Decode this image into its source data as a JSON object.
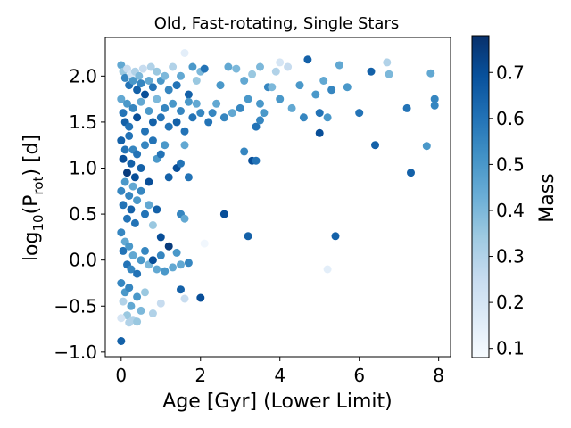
{
  "chart_data": {
    "type": "scatter",
    "title": "Old, Fast-rotating, Single Stars",
    "xlabel": "Age [Gyr] (Lower Limit)",
    "ylabel_parts": {
      "pre": "log",
      "sub1": "10",
      "mid": "(P",
      "sub2": "rot",
      "post": ") [d]"
    },
    "colorbar_label": "Mass",
    "xlim": [
      -0.4,
      8.3
    ],
    "ylim": [
      -1.05,
      2.42
    ],
    "xticks": [
      0,
      2,
      4,
      6,
      8
    ],
    "yticks": [
      -1.0,
      -0.5,
      0.0,
      0.5,
      1.0,
      1.5,
      2.0
    ],
    "clim": [
      0.08,
      0.78
    ],
    "cbar_ticks": [
      0.1,
      0.2,
      0.3,
      0.4,
      0.5,
      0.6,
      0.7
    ],
    "colormap": [
      "#f7fbff",
      "#deebf7",
      "#c6dbef",
      "#9ecae1",
      "#6baed6",
      "#4292c6",
      "#2171b5",
      "#08519c",
      "#08306b"
    ],
    "grid": false,
    "points": [
      [
        0.0,
        2.12,
        0.45
      ],
      [
        0.05,
        2.05,
        0.35
      ],
      [
        0.1,
        1.98,
        0.55
      ],
      [
        0.15,
        2.08,
        0.25
      ],
      [
        0.2,
        1.9,
        0.6
      ],
      [
        0.25,
        2.02,
        0.2
      ],
      [
        0.3,
        1.95,
        0.5
      ],
      [
        0.35,
        2.05,
        0.3
      ],
      [
        0.4,
        1.85,
        0.65
      ],
      [
        0.45,
        2.0,
        0.4
      ],
      [
        0.5,
        1.92,
        0.55
      ],
      [
        0.55,
        2.08,
        0.25
      ],
      [
        0.6,
        1.8,
        0.7
      ],
      [
        0.7,
        1.95,
        0.45
      ],
      [
        0.75,
        2.1,
        0.3
      ],
      [
        0.8,
        1.88,
        0.6
      ],
      [
        0.9,
        2.05,
        0.35
      ],
      [
        1.0,
        1.95,
        0.5
      ],
      [
        1.1,
        2.0,
        0.4
      ],
      [
        1.2,
        1.85,
        0.55
      ],
      [
        1.3,
        2.1,
        0.3
      ],
      [
        1.4,
        1.9,
        0.6
      ],
      [
        1.5,
        2.0,
        0.45
      ],
      [
        1.6,
        2.25,
        0.15
      ],
      [
        1.7,
        1.8,
        0.65
      ],
      [
        1.8,
        2.1,
        0.5
      ],
      [
        1.9,
        1.95,
        0.35
      ],
      [
        2.0,
        2.05,
        0.4
      ],
      [
        2.1,
        2.08,
        0.6
      ],
      [
        2.3,
        1.6,
        0.55
      ],
      [
        2.5,
        1.9,
        0.5
      ],
      [
        2.7,
        2.1,
        0.45
      ],
      [
        2.9,
        2.08,
        0.4
      ],
      [
        3.1,
        1.95,
        0.45
      ],
      [
        3.3,
        2.02,
        0.35
      ],
      [
        3.5,
        2.1,
        0.4
      ],
      [
        3.7,
        1.88,
        0.55
      ],
      [
        3.9,
        2.05,
        0.3
      ],
      [
        4.0,
        2.15,
        0.2
      ],
      [
        4.2,
        2.1,
        0.25
      ],
      [
        4.5,
        1.9,
        0.5
      ],
      [
        4.7,
        2.18,
        0.65
      ],
      [
        4.9,
        1.8,
        0.5
      ],
      [
        5.1,
        1.95,
        0.45
      ],
      [
        5.3,
        1.85,
        0.55
      ],
      [
        5.5,
        2.12,
        0.45
      ],
      [
        5.7,
        1.88,
        0.5
      ],
      [
        6.3,
        2.05,
        0.65
      ],
      [
        6.7,
        2.15,
        0.3
      ],
      [
        6.75,
        2.02,
        0.4
      ],
      [
        7.8,
        2.03,
        0.45
      ],
      [
        7.9,
        1.75,
        0.55
      ],
      [
        0.0,
        1.75,
        0.45
      ],
      [
        0.05,
        1.6,
        0.6
      ],
      [
        0.1,
        1.5,
        0.65
      ],
      [
        0.15,
        1.7,
        0.5
      ],
      [
        0.2,
        1.45,
        0.6
      ],
      [
        0.3,
        1.65,
        0.55
      ],
      [
        0.4,
        1.55,
        0.7
      ],
      [
        0.5,
        1.72,
        0.45
      ],
      [
        0.6,
        1.4,
        0.6
      ],
      [
        0.7,
        1.62,
        0.5
      ],
      [
        0.8,
        1.5,
        0.65
      ],
      [
        0.9,
        1.75,
        0.4
      ],
      [
        1.0,
        1.55,
        0.6
      ],
      [
        1.1,
        1.65,
        0.55
      ],
      [
        1.2,
        1.45,
        0.6
      ],
      [
        1.3,
        1.7,
        0.5
      ],
      [
        1.4,
        1.5,
        0.65
      ],
      [
        1.5,
        1.62,
        0.55
      ],
      [
        1.6,
        1.4,
        0.6
      ],
      [
        1.7,
        1.72,
        0.5
      ],
      [
        1.8,
        1.55,
        0.6
      ],
      [
        1.9,
        1.7,
        0.45
      ],
      [
        2.0,
        1.6,
        0.55
      ],
      [
        2.2,
        1.5,
        0.6
      ],
      [
        2.4,
        1.7,
        0.45
      ],
      [
        2.6,
        1.55,
        0.55
      ],
      [
        2.8,
        1.6,
        0.45
      ],
      [
        3.0,
        1.65,
        0.55
      ],
      [
        3.2,
        1.75,
        0.5
      ],
      [
        3.4,
        1.45,
        0.6
      ],
      [
        3.6,
        1.6,
        0.5
      ],
      [
        3.8,
        1.88,
        0.4
      ],
      [
        4.0,
        1.75,
        0.5
      ],
      [
        4.3,
        1.65,
        0.45
      ],
      [
        4.6,
        1.55,
        0.55
      ],
      [
        5.0,
        1.6,
        0.6
      ],
      [
        5.2,
        1.55,
        0.5
      ],
      [
        6.0,
        1.6,
        0.6
      ],
      [
        7.2,
        1.65,
        0.6
      ],
      [
        7.9,
        1.68,
        0.55
      ],
      [
        3.5,
        1.52,
        0.55
      ],
      [
        5.0,
        1.38,
        0.7
      ],
      [
        3.5,
        1.7,
        0.5
      ],
      [
        0.0,
        1.3,
        0.65
      ],
      [
        0.05,
        1.1,
        0.7
      ],
      [
        0.1,
        1.2,
        0.6
      ],
      [
        0.15,
        0.95,
        0.75
      ],
      [
        0.2,
        1.35,
        0.6
      ],
      [
        0.25,
        1.05,
        0.65
      ],
      [
        0.3,
        1.2,
        0.55
      ],
      [
        0.35,
        0.9,
        0.7
      ],
      [
        0.4,
        1.15,
        0.6
      ],
      [
        0.5,
        1.0,
        0.65
      ],
      [
        0.6,
        1.25,
        0.55
      ],
      [
        0.7,
        0.85,
        0.7
      ],
      [
        0.8,
        1.3,
        0.6
      ],
      [
        0.9,
        1.1,
        0.5
      ],
      [
        1.0,
        1.15,
        0.6
      ],
      [
        1.1,
        1.25,
        0.5
      ],
      [
        1.2,
        0.9,
        0.65
      ],
      [
        1.4,
        1.0,
        0.7
      ],
      [
        1.5,
        1.05,
        0.6
      ],
      [
        1.6,
        1.25,
        0.45
      ],
      [
        1.7,
        0.9,
        0.6
      ],
      [
        3.1,
        1.18,
        0.55
      ],
      [
        3.3,
        1.08,
        0.7
      ],
      [
        3.4,
        1.08,
        0.6
      ],
      [
        6.4,
        1.25,
        0.65
      ],
      [
        7.3,
        0.95,
        0.65
      ],
      [
        7.7,
        1.24,
        0.5
      ],
      [
        0.0,
        0.75,
        0.55
      ],
      [
        0.05,
        0.6,
        0.6
      ],
      [
        0.1,
        0.85,
        0.5
      ],
      [
        0.15,
        0.45,
        0.6
      ],
      [
        0.2,
        0.7,
        0.55
      ],
      [
        0.25,
        0.55,
        0.65
      ],
      [
        0.3,
        0.8,
        0.45
      ],
      [
        0.35,
        0.4,
        0.6
      ],
      [
        0.4,
        0.65,
        0.5
      ],
      [
        0.5,
        0.75,
        0.55
      ],
      [
        0.6,
        0.5,
        0.6
      ],
      [
        0.7,
        0.6,
        0.45
      ],
      [
        0.8,
        0.38,
        0.35
      ],
      [
        0.9,
        0.55,
        0.65
      ],
      [
        1.0,
        0.25,
        0.7
      ],
      [
        1.5,
        0.5,
        0.55
      ],
      [
        1.6,
        0.45,
        0.45
      ],
      [
        2.6,
        0.5,
        0.7
      ],
      [
        2.1,
        0.18,
        0.1
      ],
      [
        0.0,
        0.3,
        0.55
      ],
      [
        0.05,
        0.1,
        0.6
      ],
      [
        0.1,
        0.2,
        0.45
      ],
      [
        0.15,
        -0.05,
        0.6
      ],
      [
        0.2,
        0.15,
        0.5
      ],
      [
        0.25,
        -0.1,
        0.55
      ],
      [
        0.3,
        0.05,
        0.45
      ],
      [
        0.4,
        -0.15,
        0.6
      ],
      [
        0.5,
        0.0,
        0.5
      ],
      [
        0.6,
        0.1,
        0.55
      ],
      [
        0.7,
        -0.05,
        0.4
      ],
      [
        0.8,
        0.0,
        0.7
      ],
      [
        0.9,
        -0.1,
        0.45
      ],
      [
        1.0,
        0.05,
        0.55
      ],
      [
        1.1,
        -0.12,
        0.5
      ],
      [
        1.2,
        0.15,
        0.75
      ],
      [
        1.3,
        -0.08,
        0.45
      ],
      [
        1.4,
        0.08,
        0.5
      ],
      [
        1.5,
        -0.05,
        0.45
      ],
      [
        1.7,
        -0.03,
        0.55
      ],
      [
        3.2,
        0.26,
        0.65
      ],
      [
        5.4,
        0.26,
        0.65
      ],
      [
        5.2,
        -0.1,
        0.15
      ],
      [
        0.0,
        -0.25,
        0.55
      ],
      [
        0.05,
        -0.45,
        0.3
      ],
      [
        0.1,
        -0.35,
        0.5
      ],
      [
        0.15,
        -0.6,
        0.35
      ],
      [
        0.2,
        -0.3,
        0.55
      ],
      [
        0.25,
        -0.5,
        0.45
      ],
      [
        0.3,
        -0.65,
        0.3
      ],
      [
        0.4,
        -0.4,
        0.5
      ],
      [
        0.5,
        -0.55,
        0.4
      ],
      [
        0.6,
        -0.35,
        0.35
      ],
      [
        0.8,
        -0.58,
        0.3
      ],
      [
        1.0,
        -0.47,
        0.25
      ],
      [
        1.5,
        -0.32,
        0.65
      ],
      [
        1.6,
        -0.42,
        0.25
      ],
      [
        2.0,
        -0.41,
        0.7
      ],
      [
        0.0,
        -0.88,
        0.65
      ],
      [
        0.4,
        -0.67,
        0.35
      ],
      [
        0.2,
        -0.68,
        0.3
      ],
      [
        0.0,
        -0.63,
        0.2
      ]
    ]
  }
}
